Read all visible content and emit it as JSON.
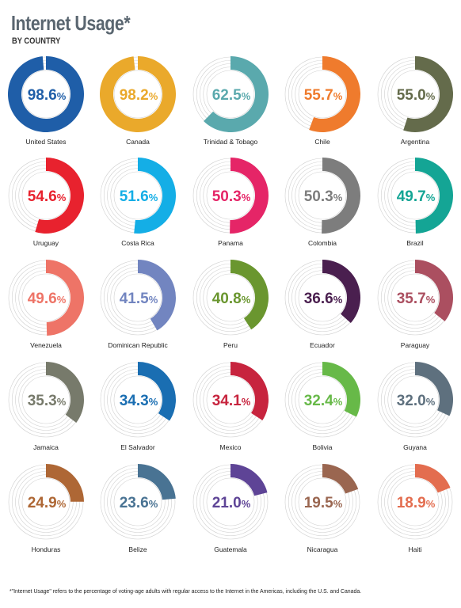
{
  "header": {
    "title": "Internet Usage*",
    "subtitle": "BY COUNTRY"
  },
  "footnote": "*\"Internet Usage\" refers to the percentage of voting-age adults with regular access to the Internet in the Americas, including the U.S. and Canada.",
  "chart_data": {
    "type": "donut",
    "title": "Internet Usage*",
    "subtitle": "BY COUNTRY",
    "unit": "%",
    "items": [
      {
        "country": "United States",
        "value": 98.6,
        "label": "98.6",
        "color": "#1f5ea8"
      },
      {
        "country": "Canada",
        "value": 98.2,
        "label": "98.2",
        "color": "#eaa92b"
      },
      {
        "country": "Trinidad & Tobago",
        "value": 62.5,
        "label": "62.5",
        "color": "#5aa9ad"
      },
      {
        "country": "Chile",
        "value": 55.7,
        "label": "55.7",
        "color": "#ef7b2d"
      },
      {
        "country": "Argentina",
        "value": 55.0,
        "label": "55.0",
        "color": "#646b4b"
      },
      {
        "country": "Uruguay",
        "value": 54.6,
        "label": "54.6",
        "color": "#e8222e"
      },
      {
        "country": "Costa Rica",
        "value": 51.6,
        "label": "51.6",
        "color": "#14aee6"
      },
      {
        "country": "Panama",
        "value": 50.3,
        "label": "50.3",
        "color": "#e52567"
      },
      {
        "country": "Colombia",
        "value": 50.3,
        "label": "50.3",
        "color": "#7d7d7d"
      },
      {
        "country": "Brazil",
        "value": 49.7,
        "label": "49.7",
        "color": "#14a595"
      },
      {
        "country": "Venezuela",
        "value": 49.6,
        "label": "49.6",
        "color": "#ee7467"
      },
      {
        "country": "Dominican Republic",
        "value": 41.5,
        "label": "41.5",
        "color": "#7285c0"
      },
      {
        "country": "Peru",
        "value": 40.8,
        "label": "40.8",
        "color": "#6a962f"
      },
      {
        "country": "Ecuador",
        "value": 36.6,
        "label": "36.6",
        "color": "#4a1f4f"
      },
      {
        "country": "Paraguay",
        "value": 35.7,
        "label": "35.7",
        "color": "#ab4f60"
      },
      {
        "country": "Jamaica",
        "value": 35.3,
        "label": "35.3",
        "color": "#777a6b"
      },
      {
        "country": "El Salvador",
        "value": 34.3,
        "label": "34.3",
        "color": "#1a6eb2"
      },
      {
        "country": "Mexico",
        "value": 34.1,
        "label": "34.1",
        "color": "#c7243e"
      },
      {
        "country": "Bolivia",
        "value": 32.4,
        "label": "32.4",
        "color": "#67b948"
      },
      {
        "country": "Guyana",
        "value": 32.0,
        "label": "32.0",
        "color": "#5e707e"
      },
      {
        "country": "Honduras",
        "value": 24.9,
        "label": "24.9",
        "color": "#ae6735"
      },
      {
        "country": "Belize",
        "value": 23.6,
        "label": "23.6",
        "color": "#497393"
      },
      {
        "country": "Guatemala",
        "value": 21.0,
        "label": "21.0",
        "color": "#5e4496"
      },
      {
        "country": "Nicaragua",
        "value": 19.5,
        "label": "19.5",
        "color": "#9a6650"
      },
      {
        "country": "Haiti",
        "value": 18.9,
        "label": "18.9",
        "color": "#e36d4f"
      }
    ]
  }
}
